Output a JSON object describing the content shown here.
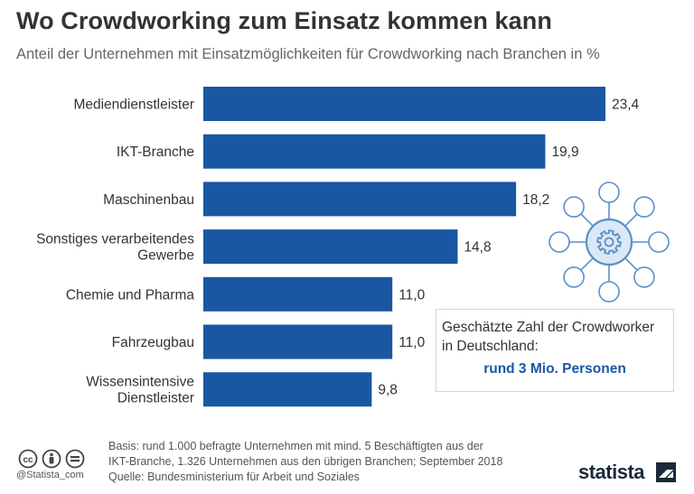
{
  "chart_data": {
    "type": "bar",
    "orientation": "horizontal",
    "title": "Wo Crowdworking zum Einsatz kommen kann",
    "subtitle": "Anteil der Unternehmen mit Einsatzmöglichkeiten für Crowdworking nach Branchen in %",
    "categories": [
      [
        "Mediendienstleister"
      ],
      [
        "IKT-Branche"
      ],
      [
        "Maschinenbau"
      ],
      [
        "Sonstiges verarbeitendes",
        "Gewerbe"
      ],
      [
        "Chemie und Pharma"
      ],
      [
        "Fahrzeugbau"
      ],
      [
        "Wissensintensive",
        "Dienstleister"
      ]
    ],
    "values": [
      23.4,
      19.9,
      18.2,
      14.8,
      11.0,
      11.0,
      9.8
    ],
    "value_labels": [
      "23,4",
      "19,9",
      "18,2",
      "14,8",
      "11,0",
      "11,0",
      "9,8"
    ],
    "xlim": [
      0,
      23.4
    ],
    "bar_color": "#1a57a3",
    "grid": false,
    "legend": "none"
  },
  "infobox": {
    "line1": "Geschätzte Zahl der Crowdworker",
    "line2": "in Deutschland:",
    "value": "rund 3 Mio. Personen"
  },
  "footer": {
    "basis_line1": "Basis: rund 1.000 befragte Unternehmen mit mind. 5 Beschäftigten aus der",
    "basis_line2": "IKT-Branche, 1.326 Unternehmen aus den übrigen Branchen; September 2018",
    "source": "Quelle: Bundesministerium für Arbeit und Soziales"
  },
  "branding": {
    "handle": "@Statista_com",
    "logo": "statista"
  },
  "icons": {
    "network": "gear-network-icon",
    "license": [
      "cc-icon",
      "attribution-icon",
      "equals-icon"
    ],
    "logo_mark": "statista-logo-icon"
  },
  "colors": {
    "accent": "#1a57a3",
    "icon_stroke": "#5b8fc7",
    "icon_fill": "#dbe8f6"
  }
}
